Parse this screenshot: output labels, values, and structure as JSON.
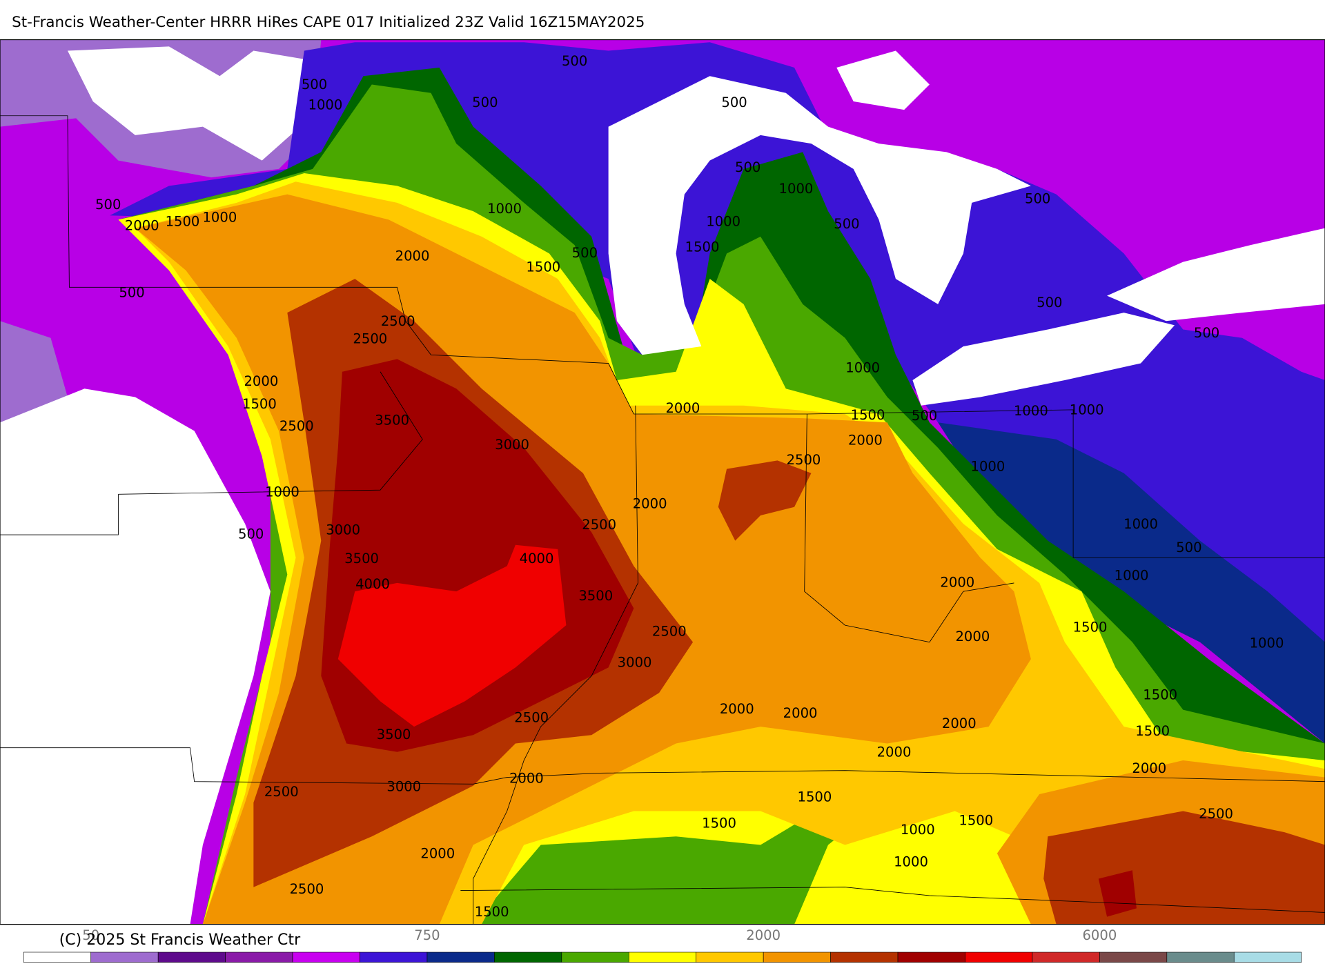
{
  "header": {
    "title": "St-Francis Weather-Center HRRR HiRes CAPE  017 Initialized  23Z Valid 16Z15MAY2025"
  },
  "map": {
    "contour_labels": [
      "500",
      "500",
      "1000",
      "500",
      "500",
      "500",
      "2000",
      "1500",
      "1000",
      "1000",
      "500",
      "1000",
      "500",
      "1000",
      "1500",
      "500",
      "1500",
      "2000",
      "500",
      "500",
      "500",
      "500",
      "2500",
      "2500",
      "2000",
      "1500",
      "2500",
      "3500",
      "3000",
      "1000",
      "2000",
      "1500",
      "500",
      "1000",
      "1000",
      "2000",
      "2500",
      "1000",
      "1000",
      "2000",
      "2500",
      "500",
      "3000",
      "1000",
      "500",
      "3500",
      "4000",
      "4000",
      "1000",
      "2000",
      "3500",
      "2500",
      "1500",
      "2000",
      "1000",
      "3000",
      "1500",
      "2000",
      "2000",
      "2500",
      "2000",
      "1500",
      "3500",
      "2000",
      "2000",
      "2000",
      "3000",
      "2500",
      "1500",
      "1500",
      "1500",
      "2500",
      "1000",
      "2000",
      "1000",
      "2500",
      "1500"
    ]
  },
  "colorbar": {
    "colors": [
      "#ffffff",
      "#9e6ccf",
      "#5e0a8c",
      "#8a1aa8",
      "#c800f0",
      "#3c14d6",
      "#0a2a8a",
      "#006600",
      "#4aa800",
      "#ffff00",
      "#ffc800",
      "#f29400",
      "#b43200",
      "#a00000",
      "#f00000",
      "#d02828",
      "#7a4848",
      "#6a8c8c",
      "#a8dce6"
    ],
    "labels": [
      "50",
      "750",
      "2000",
      "6000"
    ]
  },
  "footer": {
    "copyright": "(C) 2025 St Francis Weather Ctr"
  }
}
